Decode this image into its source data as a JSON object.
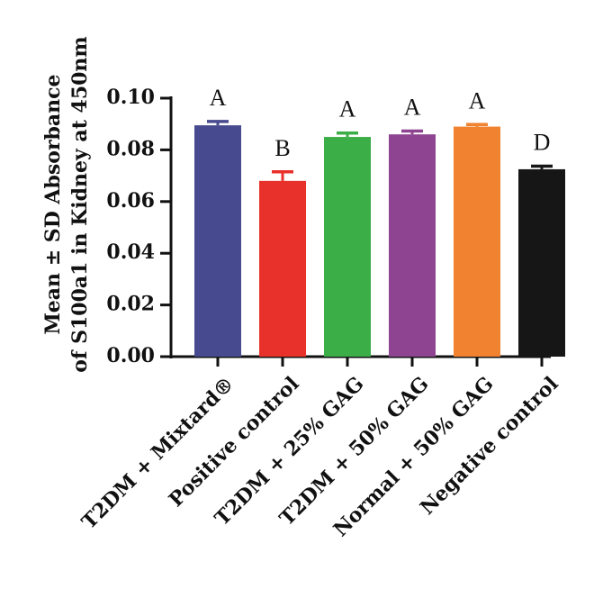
{
  "chart_data": {
    "type": "bar",
    "title": "",
    "xlabel": "",
    "ylabel_lines": [
      "Mean ± SD Absorbance",
      "of S100a1 in Kidney at 450nm"
    ],
    "ylim": [
      0,
      0.1
    ],
    "yticks": [
      "0.00",
      "0.02",
      "0.04",
      "0.06",
      "0.08",
      "0.10"
    ],
    "grid": false,
    "categories": [
      "T2DM + Mixtard®",
      "Positive control",
      "T2DM + 25% GAG",
      "T2DM + 50% GAG",
      "Normal + 50% GAG",
      "Negative control"
    ],
    "values": [
      0.0895,
      0.068,
      0.085,
      0.086,
      0.089,
      0.0725
    ],
    "errors": [
      0.0015,
      0.0035,
      0.0015,
      0.0013,
      0.0008,
      0.0012
    ],
    "significance": [
      "A",
      "B",
      "A",
      "A",
      "A",
      "D"
    ],
    "colors": [
      "#474a8f",
      "#e8312a",
      "#3cae48",
      "#8e4491",
      "#f08230",
      "#161616"
    ]
  }
}
